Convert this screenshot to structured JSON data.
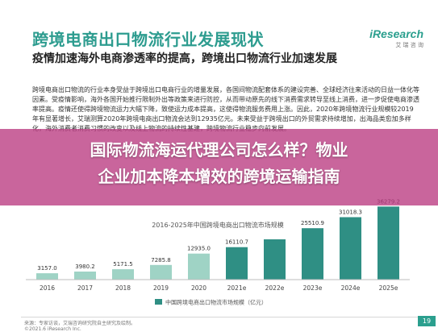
{
  "header": {
    "title": "跨境电商出口物流行业发展现状",
    "logo_text": "iResearch",
    "logo_sub": "艾 瑞 咨 询"
  },
  "subtitle": "疫情加速海外电商渗透率的提高，跨境出口物流行业加速发展",
  "body": "跨境电商出口物流的行业本身受益于跨境出口电商行业的增量发展，各国间物流配套体系的建设完善、全球经济往来活动的日益一体化等因素。受疫情影响，海外各国开始推行限制外出等政策来进行防控，从而带动原先的线下消费需求转导至线上消费，进一步促使电商渗透率提高。疫情还使得跨境物流运力大幅下降，致使运力成本提高，这使得物流服务费用上涨。因此，2020年跨境物流行业规模较2019年有显著增长，艾瑞测算2020年跨境电商出口物流会达到12935亿元。未来受益于跨境出口的外贸需求持续增加，出海品类愈加多样化，海外消费者消费习惯的改变以及线上物流的持续性基建，跨境物流行业稳步向前发展。",
  "overlay": {
    "line1": "国际物流海运代理公司怎么样？物业",
    "line2": "企业加本降本增效的跨境运输指南"
  },
  "chart_data": {
    "type": "bar",
    "title": "2016-2025年中国跨境电商出口物流市场规模",
    "categories": [
      "2016",
      "2017",
      "2018",
      "2019",
      "2020",
      "2021e",
      "2022e",
      "2023e",
      "2024e",
      "2025e"
    ],
    "values": [
      3157.0,
      3980.2,
      5171.5,
      7285.8,
      12935.0,
      16110.7,
      20000.0,
      25510.9,
      31018.3,
      36279.2
    ],
    "value_labels": [
      "3157.0",
      "3980.2",
      "5171.5",
      "7285.8",
      "12935.0",
      "16110.7",
      "",
      "25510.9",
      "31018.3",
      "36279.2"
    ],
    "legend": "中国跨境电商出口物流市场规模（亿元）",
    "legend_position": "bottom",
    "ylim": [
      0,
      40000
    ],
    "grid": false,
    "colors": {
      "history": "#9fd3c5",
      "forecast": "#2f8f84"
    }
  },
  "footer": {
    "note": "来源：专家访谈，艾瑞咨询研究院自主研究及绘制。",
    "copyright": "©2021.6 iResearch Inc.",
    "page": "19"
  }
}
